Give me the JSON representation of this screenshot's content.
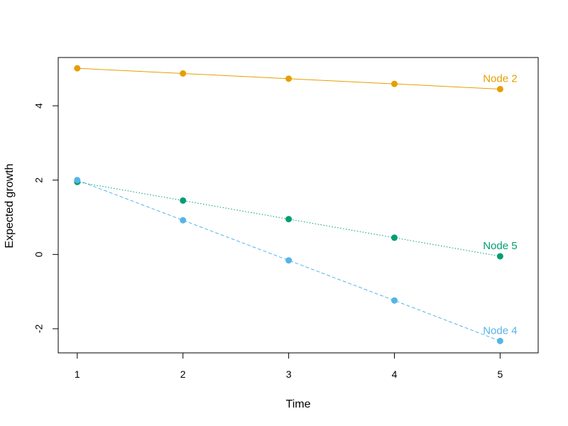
{
  "chart_data": {
    "type": "line",
    "title": "",
    "xlabel": "Time",
    "ylabel": "Expected growth",
    "x": [
      1,
      2,
      3,
      4,
      5
    ],
    "xlim": [
      0.82,
      5.36
    ],
    "ylim": [
      -2.65,
      5.3
    ],
    "xticks": [
      1,
      2,
      3,
      4,
      5
    ],
    "yticks": [
      -2,
      0,
      2,
      4
    ],
    "grid": false,
    "legend": "none",
    "series": [
      {
        "name": "Node 2",
        "values": [
          5.01,
          4.87,
          4.73,
          4.59,
          4.45
        ],
        "color": "#E69F00",
        "line_style": "solid"
      },
      {
        "name": "Node 5",
        "values": [
          1.95,
          1.45,
          0.95,
          0.45,
          -0.05
        ],
        "color": "#009E73",
        "line_style": "dotted"
      },
      {
        "name": "Node 4",
        "values": [
          2.0,
          0.92,
          -0.16,
          -1.24,
          -2.33
        ],
        "color": "#56B4E9",
        "line_style": "dashed"
      }
    ]
  }
}
